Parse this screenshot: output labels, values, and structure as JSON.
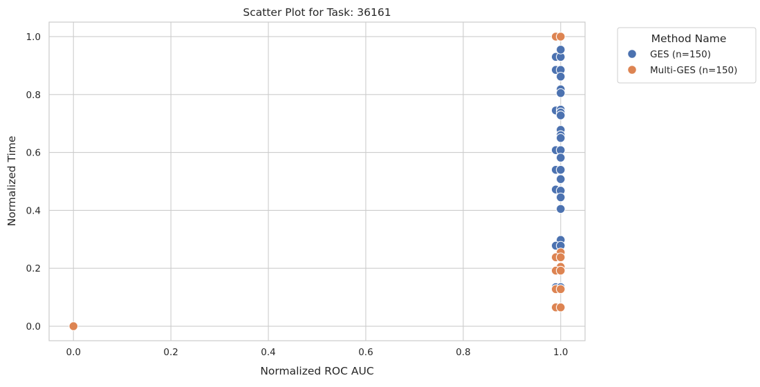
{
  "chart_data": {
    "type": "scatter",
    "title": "Scatter Plot for Task: 36161",
    "xlabel": "Normalized ROC AUC",
    "ylabel": "Normalized Time",
    "xlim": [
      -0.05,
      1.05
    ],
    "ylim": [
      -0.05,
      1.05
    ],
    "xticks": [
      0.0,
      0.2,
      0.4,
      0.6,
      0.8,
      1.0
    ],
    "xtick_labels": [
      "0.0",
      "0.2",
      "0.4",
      "0.6",
      "0.8",
      "1.0"
    ],
    "yticks": [
      0.0,
      0.2,
      0.4,
      0.6,
      0.8,
      1.0
    ],
    "ytick_labels": [
      "0.0",
      "0.2",
      "0.4",
      "0.6",
      "0.8",
      "1.0"
    ],
    "grid": true,
    "legend": {
      "title": "Method Name",
      "placement": "outside-top-right"
    },
    "series": [
      {
        "name": "GES (n=150)",
        "color": "#4c72b0",
        "points": [
          [
            0.99,
            0.93
          ],
          [
            1.0,
            0.93
          ],
          [
            1.0,
            0.955
          ],
          [
            0.99,
            0.885
          ],
          [
            1.0,
            0.885
          ],
          [
            1.0,
            0.862
          ],
          [
            1.0,
            0.818
          ],
          [
            1.0,
            0.805
          ],
          [
            0.99,
            0.745
          ],
          [
            1.0,
            0.748
          ],
          [
            1.0,
            0.738
          ],
          [
            1.0,
            0.728
          ],
          [
            1.0,
            0.678
          ],
          [
            1.0,
            0.66
          ],
          [
            1.0,
            0.65
          ],
          [
            0.99,
            0.608
          ],
          [
            1.0,
            0.608
          ],
          [
            1.0,
            0.582
          ],
          [
            0.99,
            0.54
          ],
          [
            1.0,
            0.54
          ],
          [
            1.0,
            0.508
          ],
          [
            0.99,
            0.472
          ],
          [
            1.0,
            0.468
          ],
          [
            1.0,
            0.445
          ],
          [
            1.0,
            0.405
          ],
          [
            1.0,
            0.298
          ],
          [
            0.99,
            0.278
          ],
          [
            1.0,
            0.278
          ],
          [
            0.99,
            0.135
          ],
          [
            1.0,
            0.135
          ]
        ]
      },
      {
        "name": "Multi-GES (n=150)",
        "color": "#dd8452",
        "points": [
          [
            0.99,
            1.0
          ],
          [
            1.0,
            1.0
          ],
          [
            1.0,
            0.255
          ],
          [
            0.99,
            0.238
          ],
          [
            1.0,
            0.238
          ],
          [
            1.0,
            0.205
          ],
          [
            0.99,
            0.192
          ],
          [
            1.0,
            0.192
          ],
          [
            0.99,
            0.128
          ],
          [
            1.0,
            0.128
          ],
          [
            0.99,
            0.065
          ],
          [
            1.0,
            0.065
          ],
          [
            0.0,
            0.0
          ]
        ]
      }
    ]
  }
}
